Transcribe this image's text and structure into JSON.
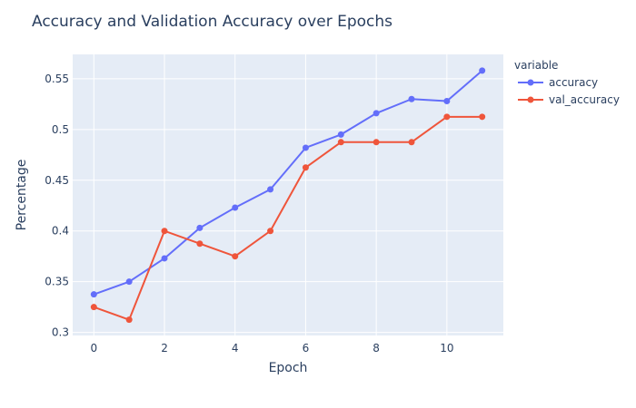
{
  "chart_data": {
    "type": "line",
    "title": "Accuracy and Validation Accuracy over Epochs",
    "xlabel": "Epoch",
    "ylabel": "Percentage",
    "x": [
      0,
      1,
      2,
      3,
      4,
      5,
      6,
      7,
      8,
      9,
      10,
      11
    ],
    "xlim": [
      -0.6,
      11.6
    ],
    "ylim": [
      0.297,
      0.574
    ],
    "xticks": [
      0,
      2,
      4,
      6,
      8,
      10
    ],
    "yticks": [
      0.3,
      0.35,
      0.4,
      0.45,
      0.5,
      0.55
    ],
    "ytick_labels": [
      "0.3",
      "0.35",
      "0.4",
      "0.45",
      "0.5",
      "0.55"
    ],
    "grid": true,
    "legend": {
      "title": "variable",
      "placement": "right"
    },
    "series": [
      {
        "name": "accuracy",
        "color": "#636efa",
        "values": [
          0.3375,
          0.35,
          0.373,
          0.403,
          0.423,
          0.441,
          0.482,
          0.495,
          0.516,
          0.53,
          0.528,
          0.558
        ]
      },
      {
        "name": "val_accuracy",
        "color": "#ef553b",
        "values": [
          0.325,
          0.3125,
          0.4,
          0.3875,
          0.375,
          0.4,
          0.4625,
          0.4875,
          0.4875,
          0.4875,
          0.5125,
          0.5125
        ]
      }
    ]
  }
}
